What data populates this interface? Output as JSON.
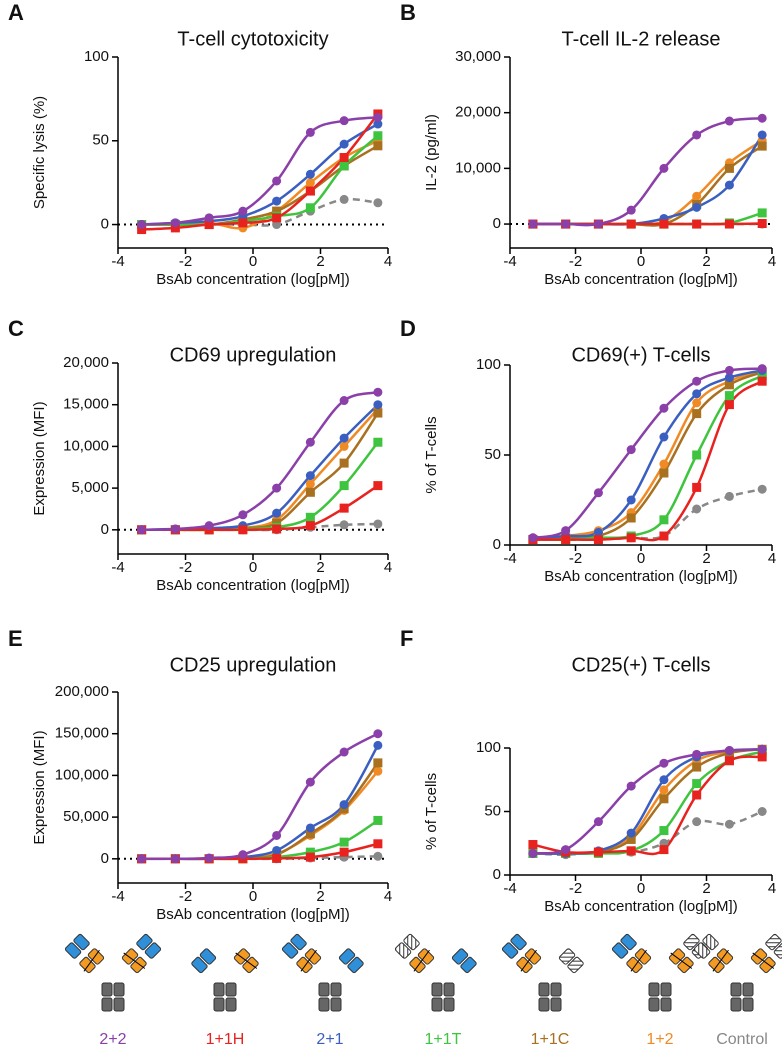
{
  "chart_data": [
    {
      "type": "line",
      "panel_label": "A",
      "title": "T-cell cytotoxicity",
      "x_label": "BsAb concentration (log[pM])",
      "y_label": "Specific lysis (%)",
      "xlim": [
        -4,
        4
      ],
      "xticks": [
        -4,
        -2,
        0,
        2,
        4
      ],
      "ylim": [
        -14,
        100
      ],
      "yticks": [
        0,
        50,
        100
      ],
      "zero_line": true,
      "x": [
        -3.3,
        -2.3,
        -1.3,
        -0.3,
        0.7,
        1.7,
        2.7,
        3.7
      ],
      "series": [
        {
          "name": "2+2",
          "color": "#8b3fa8",
          "marker": "circle",
          "values": [
            0,
            1,
            4,
            8,
            26,
            55,
            62,
            64
          ]
        },
        {
          "name": "1+1H",
          "color": "#e8231f",
          "marker": "square",
          "values": [
            -3,
            -2,
            0,
            1,
            4,
            20,
            40,
            66
          ]
        },
        {
          "name": "2+1",
          "color": "#3b5fc0",
          "marker": "circle",
          "values": [
            0,
            1,
            2,
            5,
            14,
            30,
            48,
            60
          ]
        },
        {
          "name": "1+1T",
          "color": "#3ec43e",
          "marker": "square",
          "values": [
            0,
            0,
            0,
            2,
            5,
            10,
            35,
            53
          ]
        },
        {
          "name": "1+1C",
          "color": "#a8701f",
          "marker": "square",
          "values": [
            0,
            0,
            0,
            3,
            8,
            20,
            35,
            47
          ]
        },
        {
          "name": "1+2",
          "color": "#f08a24",
          "marker": "circle",
          "values": [
            0,
            0,
            1,
            -2,
            8,
            25,
            40,
            50
          ]
        },
        {
          "name": "Control",
          "color": "#888888",
          "marker": "circle",
          "dashed": true,
          "values": [
            0,
            0,
            0,
            0,
            0,
            8,
            15,
            13
          ]
        }
      ]
    },
    {
      "type": "line",
      "panel_label": "B",
      "title": "T-cell IL-2 release",
      "x_label": "BsAb concentration (log[pM])",
      "y_label": "IL-2 (pg/ml)",
      "xlim": [
        -4,
        4
      ],
      "xticks": [
        -4,
        -2,
        0,
        2,
        4
      ],
      "ylim": [
        -4300,
        30000
      ],
      "yticks": [
        0,
        {
          "value": 10000,
          "label": "10,000"
        },
        {
          "value": 20000,
          "label": "20,000"
        },
        {
          "value": 30000,
          "label": "30,000"
        }
      ],
      "zero_line": true,
      "x": [
        -3.3,
        -2.3,
        -1.3,
        -0.3,
        0.7,
        1.7,
        2.7,
        3.7
      ],
      "series": [
        {
          "color": "#8b3fa8",
          "marker": "circle",
          "values": [
            0,
            0,
            0,
            2500,
            10000,
            16000,
            18500,
            19000
          ]
        },
        {
          "color": "#e8231f",
          "marker": "square",
          "values": [
            0,
            0,
            0,
            0,
            0,
            0,
            0,
            100
          ]
        },
        {
          "color": "#3b5fc0",
          "marker": "circle",
          "values": [
            0,
            0,
            0,
            0,
            1000,
            3000,
            7000,
            16000
          ]
        },
        {
          "color": "#3ec43e",
          "marker": "square",
          "values": [
            0,
            0,
            0,
            0,
            0,
            0,
            200,
            2000
          ]
        },
        {
          "color": "#a8701f",
          "marker": "square",
          "values": [
            0,
            0,
            0,
            0,
            0,
            3500,
            10000,
            14000
          ]
        },
        {
          "color": "#f08a24",
          "marker": "circle",
          "values": [
            0,
            0,
            0,
            0,
            500,
            5000,
            11000,
            15000
          ]
        },
        {
          "color": "#888888",
          "marker": "circle",
          "dashed": true,
          "values": [
            0,
            0,
            0,
            0,
            0,
            0,
            0,
            0
          ]
        }
      ]
    },
    {
      "type": "line",
      "panel_label": "C",
      "title": "CD69 upregulation",
      "x_label": "BsAb concentration (log[pM])",
      "y_label": "Expression (MFI)",
      "xlim": [
        -4,
        4
      ],
      "xticks": [
        -4,
        -2,
        0,
        2,
        4
      ],
      "ylim": [
        -2900,
        20000
      ],
      "yticks": [
        0,
        {
          "value": 5000,
          "label": "5,000"
        },
        {
          "value": 10000,
          "label": "10,000"
        },
        {
          "value": 15000,
          "label": "15,000"
        },
        {
          "value": 20000,
          "label": "20,000"
        }
      ],
      "zero_line": true,
      "x": [
        -3.3,
        -2.3,
        -1.3,
        -0.3,
        0.7,
        1.7,
        2.7,
        3.7
      ],
      "series": [
        {
          "color": "#8b3fa8",
          "marker": "circle",
          "values": [
            0,
            100,
            500,
            1800,
            5000,
            10500,
            15500,
            16500
          ]
        },
        {
          "color": "#e8231f",
          "marker": "square",
          "values": [
            0,
            0,
            0,
            0,
            100,
            500,
            2600,
            5300
          ]
        },
        {
          "color": "#3b5fc0",
          "marker": "circle",
          "values": [
            0,
            100,
            200,
            500,
            2000,
            6500,
            11000,
            15000
          ]
        },
        {
          "color": "#3ec43e",
          "marker": "square",
          "values": [
            0,
            0,
            0,
            100,
            300,
            1500,
            5300,
            10500
          ]
        },
        {
          "color": "#a8701f",
          "marker": "square",
          "values": [
            0,
            0,
            0,
            200,
            800,
            4500,
            8000,
            14000
          ]
        },
        {
          "color": "#f08a24",
          "marker": "circle",
          "values": [
            0,
            0,
            0,
            200,
            1200,
            5500,
            10000,
            14500
          ]
        },
        {
          "color": "#888888",
          "marker": "circle",
          "dashed": true,
          "values": [
            0,
            0,
            0,
            0,
            0,
            300,
            600,
            700
          ]
        }
      ]
    },
    {
      "type": "line",
      "panel_label": "D",
      "title": "CD69(+) T-cells",
      "x_label": "BsAb concentration (log[pM])",
      "y_label": "% of T-cells",
      "xlim": [
        -4,
        4
      ],
      "xticks": [
        -4,
        -2,
        0,
        2,
        4
      ],
      "ylim": [
        0,
        100
      ],
      "yticks": [
        0,
        50,
        100
      ],
      "zero_line": false,
      "x": [
        -3.3,
        -2.3,
        -1.3,
        -0.3,
        0.7,
        1.7,
        2.7,
        3.7
      ],
      "series": [
        {
          "color": "#8b3fa8",
          "marker": "circle",
          "values": [
            4,
            8,
            29,
            53,
            76,
            91,
            97,
            98
          ]
        },
        {
          "color": "#e8231f",
          "marker": "square",
          "values": [
            3,
            3,
            3,
            4,
            5,
            32,
            78,
            91
          ]
        },
        {
          "color": "#3b5fc0",
          "marker": "circle",
          "values": [
            4,
            5,
            7,
            25,
            60,
            84,
            93,
            97
          ]
        },
        {
          "color": "#3ec43e",
          "marker": "square",
          "values": [
            3,
            3,
            4,
            5,
            14,
            50,
            83,
            94
          ]
        },
        {
          "color": "#a8701f",
          "marker": "square",
          "values": [
            3,
            4,
            5,
            15,
            40,
            73,
            89,
            96
          ]
        },
        {
          "color": "#f08a24",
          "marker": "circle",
          "values": [
            3,
            5,
            8,
            18,
            45,
            79,
            91,
            97
          ]
        },
        {
          "color": "#888888",
          "marker": "circle",
          "dashed": true,
          "values": [
            3,
            3,
            3,
            4,
            5,
            20,
            27,
            31
          ]
        }
      ]
    },
    {
      "type": "line",
      "panel_label": "E",
      "title": "CD25 upregulation",
      "x_label": "BsAb concentration (log[pM])",
      "y_label": "Expression (MFI)",
      "xlim": [
        -4,
        4
      ],
      "xticks": [
        -4,
        -2,
        0,
        2,
        4
      ],
      "ylim": [
        -29000,
        200000
      ],
      "yticks": [
        0,
        {
          "value": 50000,
          "label": "50,000"
        },
        {
          "value": 100000,
          "label": "100,000"
        },
        {
          "value": 150000,
          "label": "150,000"
        },
        {
          "value": 200000,
          "label": "200,000"
        }
      ],
      "zero_line": true,
      "x": [
        -3.3,
        -2.3,
        -1.3,
        -0.3,
        0.7,
        1.7,
        2.7,
        3.7
      ],
      "series": [
        {
          "color": "#8b3fa8",
          "marker": "circle",
          "values": [
            0,
            0,
            1000,
            5000,
            28000,
            92000,
            128000,
            150000
          ]
        },
        {
          "color": "#e8231f",
          "marker": "square",
          "values": [
            0,
            0,
            0,
            0,
            500,
            2000,
            8000,
            18000
          ]
        },
        {
          "color": "#3b5fc0",
          "marker": "circle",
          "values": [
            0,
            0,
            0,
            2000,
            10000,
            37000,
            65000,
            136000
          ]
        },
        {
          "color": "#3ec43e",
          "marker": "square",
          "values": [
            0,
            0,
            0,
            0,
            2000,
            8000,
            20000,
            46000
          ]
        },
        {
          "color": "#a8701f",
          "marker": "square",
          "values": [
            0,
            0,
            0,
            1000,
            5000,
            30000,
            60000,
            115000
          ]
        },
        {
          "color": "#f08a24",
          "marker": "circle",
          "values": [
            0,
            0,
            0,
            1000,
            6000,
            28000,
            58000,
            105000
          ]
        },
        {
          "color": "#888888",
          "marker": "circle",
          "dashed": true,
          "values": [
            0,
            0,
            0,
            0,
            0,
            1000,
            2000,
            3000
          ]
        }
      ]
    },
    {
      "type": "line",
      "panel_label": "F",
      "title": "CD25(+) T-cells",
      "x_label": "BsAb concentration (log[pM])",
      "y_label": "% of T-cells",
      "xlim": [
        -4,
        4
      ],
      "xticks": [
        -4,
        -2,
        0,
        2,
        4
      ],
      "ylim": [
        0,
        100
      ],
      "yticks": [
        0,
        50,
        100
      ],
      "zero_line": false,
      "x": [
        -3.3,
        -2.3,
        -1.3,
        -0.3,
        0.7,
        1.7,
        2.7,
        3.7
      ],
      "series": [
        {
          "color": "#8b3fa8",
          "marker": "circle",
          "values": [
            17,
            20,
            42,
            70,
            88,
            95,
            98,
            99
          ]
        },
        {
          "color": "#e8231f",
          "marker": "square",
          "values": [
            24,
            18,
            18,
            19,
            20,
            63,
            90,
            93
          ]
        },
        {
          "color": "#3b5fc0",
          "marker": "circle",
          "values": [
            17,
            17,
            19,
            33,
            75,
            93,
            98,
            99
          ]
        },
        {
          "color": "#3ec43e",
          "marker": "square",
          "values": [
            17,
            17,
            17,
            19,
            35,
            72,
            90,
            97
          ]
        },
        {
          "color": "#a8701f",
          "marker": "square",
          "values": [
            17,
            17,
            18,
            28,
            60,
            85,
            96,
            99
          ]
        },
        {
          "color": "#f08a24",
          "marker": "circle",
          "values": [
            17,
            17,
            18,
            30,
            67,
            90,
            97,
            99
          ]
        },
        {
          "color": "#888888",
          "marker": "circle",
          "dashed": true,
          "values": [
            17,
            16,
            18,
            18,
            25,
            42,
            40,
            50
          ]
        }
      ]
    }
  ]
}
